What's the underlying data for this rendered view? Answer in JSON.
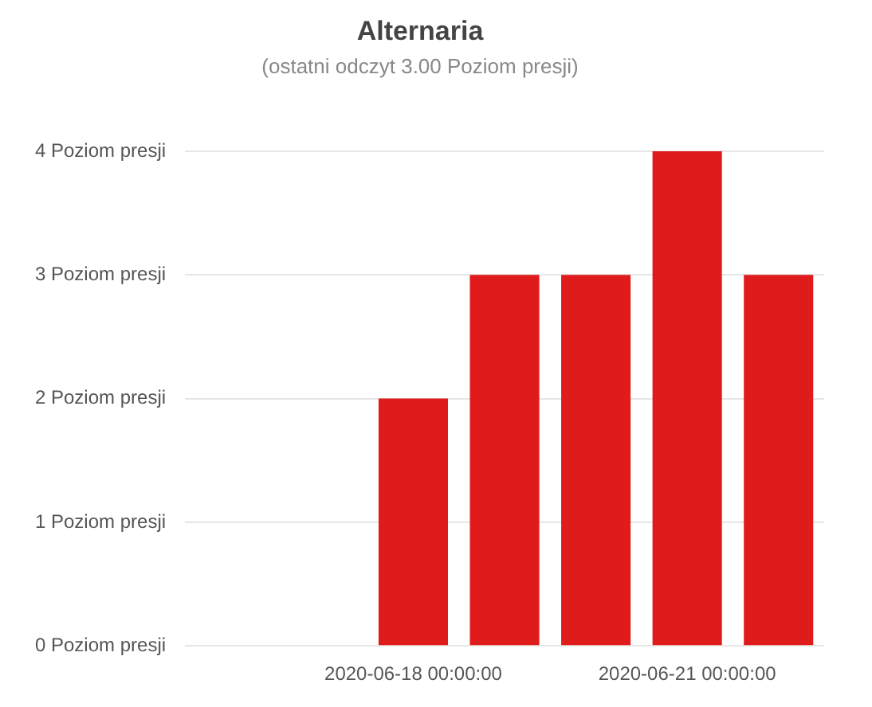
{
  "chart_data": {
    "type": "bar",
    "title": "Alternaria",
    "subtitle": "(ostatni odczyt 3.00 Poziom presji)",
    "categories": [
      null,
      null,
      "2020-06-18 00:00:00",
      null,
      null,
      "2020-06-21 00:00:00",
      null
    ],
    "values": [
      null,
      null,
      2,
      3,
      3,
      4,
      3
    ],
    "color": "#e01b1b",
    "ylim": [
      0,
      4
    ],
    "yticks": [
      {
        "value": 0,
        "label": "0 Poziom presji"
      },
      {
        "value": 1,
        "label": "1 Poziom presji"
      },
      {
        "value": 2,
        "label": "2 Poziom presji"
      },
      {
        "value": 3,
        "label": "3 Poziom presji"
      },
      {
        "value": 4,
        "label": "4 Poziom presji"
      }
    ],
    "grid": "y",
    "legend": false
  }
}
